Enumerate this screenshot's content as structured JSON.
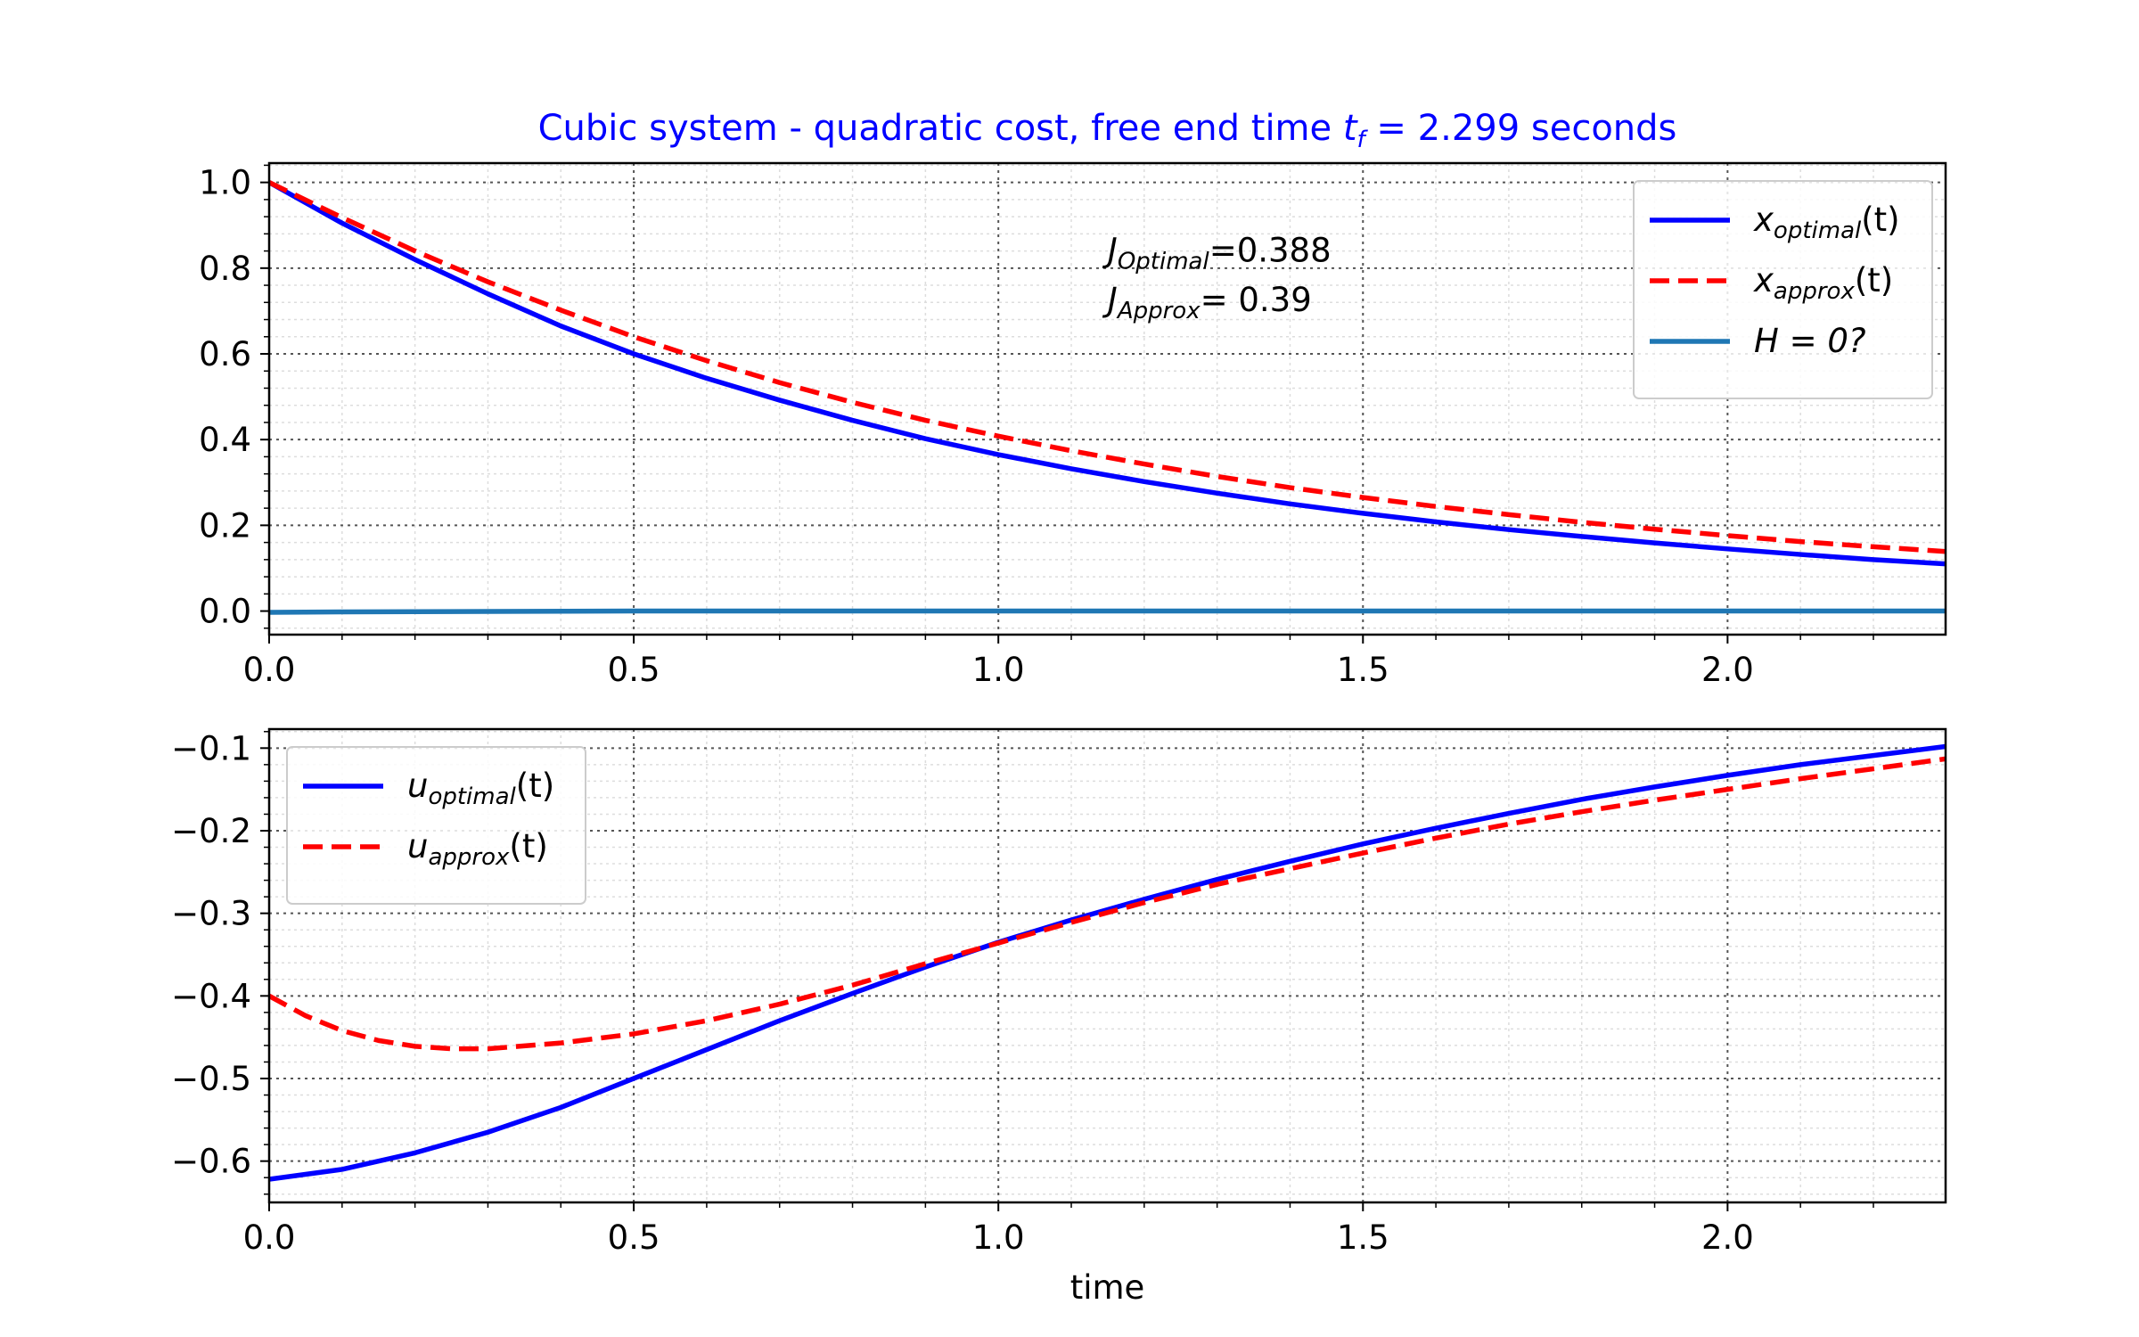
{
  "chart_data": [
    {
      "type": "line",
      "title": "Cubic system - quadratic cost, free end time t_f = 2.299 seconds",
      "title_parts": {
        "prefix": "Cubic system - quadratic cost, free end time ",
        "var": "t",
        "var_sub": "f",
        "suffix": " = 2.299 seconds"
      },
      "title_color": "#0000ff",
      "xlim": [
        0,
        2.299
      ],
      "ylim": [
        -0.055,
        1.045
      ],
      "xticks": [
        0.0,
        0.5,
        1.0,
        1.5,
        2.0
      ],
      "xtick_labels": [
        "0.0",
        "0.5",
        "1.0",
        "1.5",
        "2.0"
      ],
      "yticks": [
        0.0,
        0.2,
        0.4,
        0.6,
        0.8,
        1.0
      ],
      "ytick_labels": [
        "0.0",
        "0.2",
        "0.4",
        "0.6",
        "0.8",
        "1.0"
      ],
      "grid": true,
      "minor_grid": true,
      "legend_position": "top-right",
      "annotations": [
        {
          "main": "J",
          "sub": "Optimal",
          "rest": "=0.388",
          "x": 1.15,
          "y": 0.815
        },
        {
          "main": "J",
          "sub": "Approx",
          "rest": "= 0.39",
          "x": 1.15,
          "y": 0.7
        }
      ],
      "series": [
        {
          "name": "x_optimal(t)",
          "legend": {
            "main": "x",
            "sub": "optimal",
            "rest": "(t)"
          },
          "color": "#0000ff",
          "style": "solid",
          "x": [
            0,
            0.1,
            0.2,
            0.3,
            0.4,
            0.5,
            0.6,
            0.7,
            0.8,
            0.9,
            1.0,
            1.1,
            1.2,
            1.3,
            1.4,
            1.5,
            1.6,
            1.7,
            1.8,
            1.9,
            2.0,
            2.1,
            2.2,
            2.299
          ],
          "y": [
            1.0,
            0.905,
            0.82,
            0.74,
            0.665,
            0.6,
            0.543,
            0.492,
            0.445,
            0.402,
            0.365,
            0.332,
            0.302,
            0.275,
            0.25,
            0.228,
            0.208,
            0.19,
            0.174,
            0.159,
            0.145,
            0.132,
            0.12,
            0.11
          ]
        },
        {
          "name": "x_approx(t)",
          "legend": {
            "main": "x",
            "sub": "approx",
            "rest": "(t)"
          },
          "color": "#ff0000",
          "style": "dashed",
          "x": [
            0,
            0.1,
            0.2,
            0.3,
            0.4,
            0.5,
            0.6,
            0.7,
            0.8,
            0.9,
            1.0,
            1.1,
            1.2,
            1.3,
            1.4,
            1.5,
            1.6,
            1.7,
            1.8,
            1.9,
            2.0,
            2.1,
            2.2,
            2.299
          ],
          "y": [
            1.0,
            0.918,
            0.84,
            0.768,
            0.702,
            0.64,
            0.584,
            0.533,
            0.487,
            0.445,
            0.408,
            0.374,
            0.343,
            0.314,
            0.288,
            0.265,
            0.244,
            0.225,
            0.207,
            0.191,
            0.176,
            0.162,
            0.15,
            0.139
          ]
        },
        {
          "name": "H = 0?",
          "legend": {
            "main": "H = 0?",
            "sub": "",
            "rest": ""
          },
          "color": "#1f77b4",
          "style": "solid",
          "x": [
            0,
            0.1,
            0.2,
            0.3,
            0.5,
            1.0,
            1.5,
            2.0,
            2.299
          ],
          "y": [
            -0.003,
            -0.002,
            -0.0015,
            -0.001,
            0.0,
            0.0,
            0.0,
            0.0,
            0.0
          ]
        }
      ]
    },
    {
      "type": "line",
      "xlabel": "time",
      "xlim": [
        0,
        2.299
      ],
      "ylim": [
        -0.65,
        -0.077
      ],
      "xticks": [
        0.0,
        0.5,
        1.0,
        1.5,
        2.0
      ],
      "xtick_labels": [
        "0.0",
        "0.5",
        "1.0",
        "1.5",
        "2.0"
      ],
      "yticks": [
        -0.6,
        -0.5,
        -0.4,
        -0.3,
        -0.2,
        -0.1
      ],
      "ytick_labels": [
        "−0.6",
        "−0.5",
        "−0.4",
        "−0.3",
        "−0.2",
        "−0.1"
      ],
      "grid": true,
      "minor_grid": true,
      "legend_position": "top-left",
      "series": [
        {
          "name": "u_optimal(t)",
          "legend": {
            "main": "u",
            "sub": "optimal",
            "rest": "(t)"
          },
          "color": "#0000ff",
          "style": "solid",
          "x": [
            0,
            0.1,
            0.2,
            0.3,
            0.4,
            0.5,
            0.6,
            0.7,
            0.8,
            0.9,
            1.0,
            1.1,
            1.2,
            1.3,
            1.4,
            1.5,
            1.6,
            1.7,
            1.8,
            1.9,
            2.0,
            2.1,
            2.2,
            2.299
          ],
          "y": [
            -0.622,
            -0.61,
            -0.59,
            -0.565,
            -0.535,
            -0.5,
            -0.465,
            -0.43,
            -0.397,
            -0.365,
            -0.335,
            -0.308,
            -0.283,
            -0.259,
            -0.237,
            -0.216,
            -0.197,
            -0.179,
            -0.162,
            -0.147,
            -0.133,
            -0.12,
            -0.109,
            -0.098
          ]
        },
        {
          "name": "u_approx(t)",
          "legend": {
            "main": "u",
            "sub": "approx",
            "rest": "(t)"
          },
          "color": "#ff0000",
          "style": "dashed",
          "x": [
            0,
            0.05,
            0.1,
            0.15,
            0.2,
            0.25,
            0.3,
            0.4,
            0.5,
            0.6,
            0.7,
            0.8,
            0.9,
            1.0,
            1.1,
            1.2,
            1.3,
            1.4,
            1.5,
            1.6,
            1.7,
            1.8,
            1.9,
            2.0,
            2.1,
            2.2,
            2.299
          ],
          "y": [
            -0.4,
            -0.424,
            -0.442,
            -0.454,
            -0.461,
            -0.464,
            -0.464,
            -0.457,
            -0.446,
            -0.43,
            -0.41,
            -0.387,
            -0.361,
            -0.336,
            -0.311,
            -0.287,
            -0.265,
            -0.246,
            -0.227,
            -0.209,
            -0.192,
            -0.177,
            -0.163,
            -0.15,
            -0.137,
            -0.125,
            -0.113
          ]
        }
      ]
    }
  ]
}
